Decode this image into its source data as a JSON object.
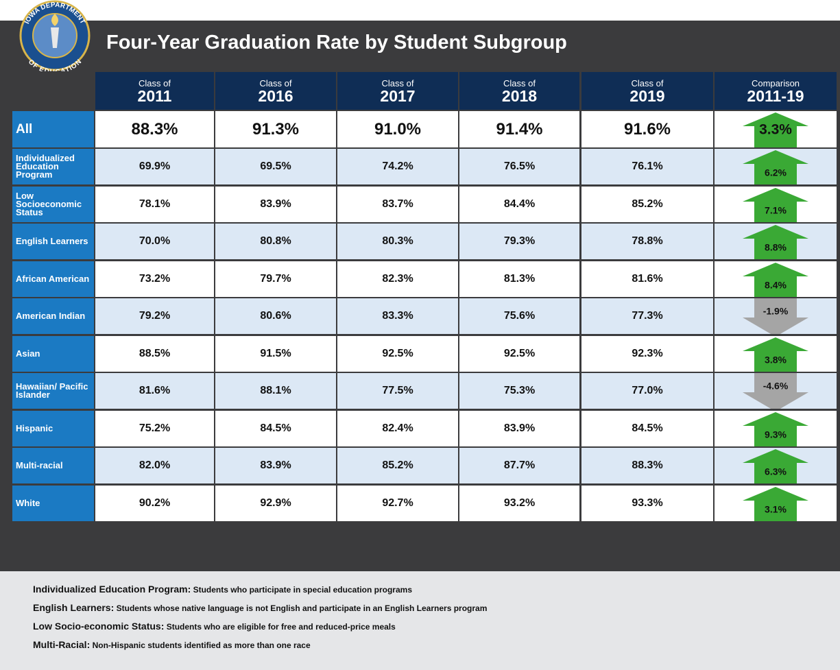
{
  "header": {
    "title": "Four-Year Graduation Rate by Student Subgroup",
    "logo_top": "IOWA DEPARTMENT",
    "logo_bottom": "OF EDUCATION"
  },
  "table": {
    "columns": [
      {
        "prefix": "Class of",
        "label": "2011"
      },
      {
        "prefix": "Class of",
        "label": "2016"
      },
      {
        "prefix": "Class of",
        "label": "2017"
      },
      {
        "prefix": "Class of",
        "label": "2018"
      },
      {
        "prefix": "Class of",
        "label": "2019"
      },
      {
        "prefix": "Comparison",
        "label": "2011-19"
      }
    ],
    "rows": [
      {
        "label": "All",
        "values": [
          "88.3%",
          "91.3%",
          "91.0%",
          "91.4%",
          "91.6%"
        ],
        "change": "3.3%",
        "trend": "up"
      },
      {
        "label": "Individualized Education Program",
        "values": [
          "69.9%",
          "69.5%",
          "74.2%",
          "76.5%",
          "76.1%"
        ],
        "change": "6.2%",
        "trend": "up"
      },
      {
        "label": "Low Socioeconomic Status",
        "values": [
          "78.1%",
          "83.9%",
          "83.7%",
          "84.4%",
          "85.2%"
        ],
        "change": "7.1%",
        "trend": "up"
      },
      {
        "label": "English Learners",
        "values": [
          "70.0%",
          "80.8%",
          "80.3%",
          "79.3%",
          "78.8%"
        ],
        "change": "8.8%",
        "trend": "up"
      },
      {
        "label": "African American",
        "values": [
          "73.2%",
          "79.7%",
          "82.3%",
          "81.3%",
          "81.6%"
        ],
        "change": "8.4%",
        "trend": "up"
      },
      {
        "label": "American Indian",
        "values": [
          "79.2%",
          "80.6%",
          "83.3%",
          "75.6%",
          "77.3%"
        ],
        "change": "-1.9%",
        "trend": "down"
      },
      {
        "label": "Asian",
        "values": [
          "88.5%",
          "91.5%",
          "92.5%",
          "92.5%",
          "92.3%"
        ],
        "change": "3.8%",
        "trend": "up"
      },
      {
        "label": "Hawaiian/ Pacific Islander",
        "values": [
          "81.6%",
          "88.1%",
          "77.5%",
          "75.3%",
          "77.0%"
        ],
        "change": "-4.6%",
        "trend": "down"
      },
      {
        "label": "Hispanic",
        "values": [
          "75.2%",
          "84.5%",
          "82.4%",
          "83.9%",
          "84.5%"
        ],
        "change": "9.3%",
        "trend": "up"
      },
      {
        "label": "Multi-racial",
        "values": [
          "82.0%",
          "83.9%",
          "85.2%",
          "87.7%",
          "88.3%"
        ],
        "change": "6.3%",
        "trend": "up"
      },
      {
        "label": "White",
        "values": [
          "90.2%",
          "92.9%",
          "92.7%",
          "93.2%",
          "93.3%"
        ],
        "change": "3.1%",
        "trend": "up"
      }
    ]
  },
  "footnotes": [
    {
      "term": "Individualized Education Program:",
      "text": "Students who participate in special education programs"
    },
    {
      "term": "English Learners:",
      "text": "Students whose native language is not English and participate in an English Learners program"
    },
    {
      "term": "Low Socio-economic Status:",
      "text": "Students who are eligible for free and reduced-price meals"
    },
    {
      "term": "Multi-Racial:",
      "text": "Non-Hispanic students identified as more than one race"
    }
  ]
}
